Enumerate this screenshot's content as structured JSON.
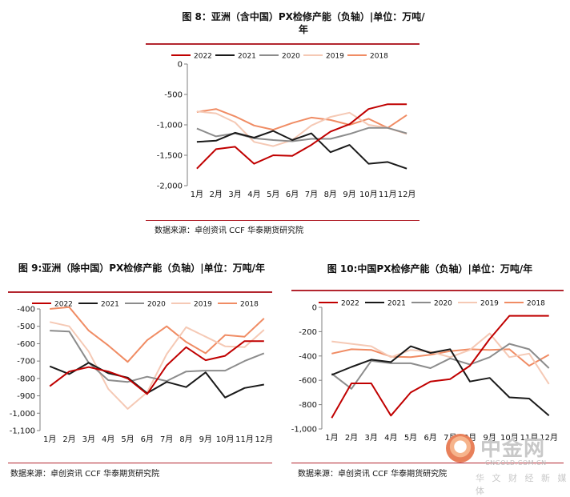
{
  "chart_data": [
    {
      "type": "line",
      "title": "图 8：亚洲（含中国）PX检修产能（负轴）|单位：万吨/年",
      "source": "数据来源：卓创资讯 CCF 华泰期货研究院",
      "categories": [
        "1月",
        "2月",
        "3月",
        "4月",
        "5月",
        "6月",
        "7月",
        "8月",
        "9月",
        "10月",
        "11月",
        "12月"
      ],
      "ylim": [
        -2000,
        0
      ],
      "yticks": [
        "0",
        "-500",
        "-1,000",
        "-1,500",
        "-2,000"
      ],
      "ytick_values": [
        0,
        -500,
        -1000,
        -1500,
        -2000
      ],
      "series": [
        {
          "name": "2022",
          "color": "#c00000",
          "values": [
            -1720,
            -1400,
            -1360,
            -1640,
            -1500,
            -1510,
            -1330,
            -1110,
            -990,
            -740,
            -660,
            -660
          ]
        },
        {
          "name": "2021",
          "color": "#1a1a1a",
          "values": [
            -1280,
            -1260,
            -1130,
            -1210,
            -1100,
            -1250,
            -1140,
            -1450,
            -1330,
            -1640,
            -1610,
            -1720
          ]
        },
        {
          "name": "2020",
          "color": "#8c8c8c",
          "values": [
            -1060,
            -1190,
            -1140,
            -1220,
            -1250,
            -1270,
            -1230,
            -1230,
            -1150,
            -1050,
            -1050,
            -1140
          ]
        },
        {
          "name": "2019",
          "color": "#f5c9b5",
          "values": [
            -780,
            -810,
            -960,
            -1280,
            -1350,
            -1250,
            -1010,
            -870,
            -800,
            -1000,
            -1050,
            -1150
          ]
        },
        {
          "name": "2018",
          "color": "#f08c64",
          "values": [
            -790,
            -740,
            -860,
            -1010,
            -1080,
            -970,
            -880,
            -920,
            -1000,
            -900,
            -1050,
            -840
          ]
        }
      ]
    },
    {
      "type": "line",
      "title": "图 9:亚洲（除中国）PX检修产能（负轴）|单位：万吨/年",
      "source": "数据来源：卓创资讯 CCF 华泰期货研究院",
      "categories": [
        "1月",
        "2月",
        "3月",
        "4月",
        "5月",
        "6月",
        "7月",
        "8月",
        "9月",
        "10月",
        "11月",
        "12月"
      ],
      "ylim": [
        -1100,
        -400
      ],
      "yticks": [
        "-400",
        "-500",
        "-600",
        "-700",
        "-800",
        "-900",
        "-1,000",
        "-1,100"
      ],
      "ytick_values": [
        -400,
        -500,
        -600,
        -700,
        -800,
        -900,
        -1000,
        -1100
      ],
      "series": [
        {
          "name": "2022",
          "color": "#c00000",
          "values": [
            -845,
            -760,
            -735,
            -760,
            -800,
            -890,
            -725,
            -620,
            -695,
            -670,
            -585,
            -585
          ]
        },
        {
          "name": "2021",
          "color": "#1a1a1a",
          "values": [
            -730,
            -775,
            -710,
            -770,
            -795,
            -885,
            -820,
            -850,
            -765,
            -910,
            -855,
            -835
          ]
        },
        {
          "name": "2020",
          "color": "#8c8c8c",
          "values": [
            -525,
            -530,
            -710,
            -810,
            -820,
            -790,
            -815,
            -760,
            -755,
            -755,
            -700,
            -655
          ]
        },
        {
          "name": "2019",
          "color": "#f5c9b5",
          "values": [
            -475,
            -500,
            -645,
            -860,
            -975,
            -880,
            -660,
            -505,
            -560,
            -615,
            -620,
            -520
          ]
        },
        {
          "name": "2018",
          "color": "#f08c64",
          "values": [
            -400,
            -390,
            -525,
            -610,
            -705,
            -580,
            -500,
            -590,
            -655,
            -550,
            -560,
            -455
          ]
        }
      ]
    },
    {
      "type": "line",
      "title": "图 10:中国PX检修产能（负轴）|单位：万吨/年",
      "source": "数据来源：卓创资讯 CCF 华泰期货研究院",
      "categories": [
        "1月",
        "2月",
        "3月",
        "4月",
        "5月",
        "6月",
        "7月",
        "8月",
        "9月",
        "10月",
        "11月",
        "12月"
      ],
      "ylim": [
        -1000,
        0
      ],
      "yticks": [
        "0",
        "-200",
        "-400",
        "-600",
        "-800",
        "-1,000"
      ],
      "ytick_values": [
        0,
        -200,
        -400,
        -600,
        -800,
        -1000
      ],
      "series": [
        {
          "name": "2022",
          "color": "#c00000",
          "values": [
            -910,
            -625,
            -625,
            -890,
            -700,
            -610,
            -590,
            -480,
            -260,
            -70,
            -70,
            -70
          ]
        },
        {
          "name": "2021",
          "color": "#1a1a1a",
          "values": [
            -555,
            -490,
            -430,
            -450,
            -320,
            -375,
            -345,
            -610,
            -580,
            -740,
            -750,
            -890
          ]
        },
        {
          "name": "2020",
          "color": "#8c8c8c",
          "values": [
            -545,
            -670,
            -440,
            -460,
            -460,
            -500,
            -420,
            -470,
            -410,
            -300,
            -345,
            -500
          ]
        },
        {
          "name": "2019",
          "color": "#f5c9b5",
          "values": [
            -280,
            -300,
            -320,
            -410,
            -350,
            -365,
            -410,
            -350,
            -215,
            -410,
            -380,
            -630
          ]
        },
        {
          "name": "2018",
          "color": "#f08c64",
          "values": [
            -380,
            -345,
            -350,
            -405,
            -410,
            -390,
            -360,
            -345,
            -350,
            -345,
            -480,
            -390
          ]
        }
      ]
    }
  ],
  "watermark": {
    "brand": "中金网",
    "url": "CNGOLD.COM.CN",
    "tagline": "华 文 财 经 新 媒 体"
  }
}
